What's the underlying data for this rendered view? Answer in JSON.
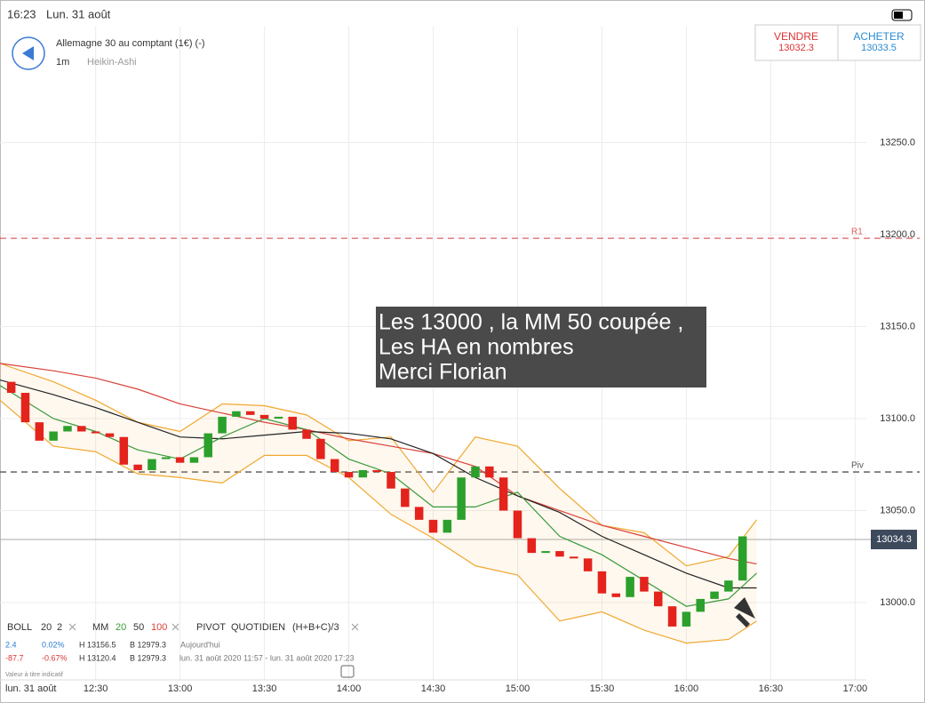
{
  "status": {
    "time": "16:23",
    "date": "Lun. 31 août"
  },
  "header": {
    "instrument": "Allemagne 30 au comptant (1€) (-)",
    "interval": "1m",
    "style": "Heikin-Ashi"
  },
  "quote": {
    "sell_label": "VENDRE",
    "sell_price": "13032.3",
    "buy_label": "ACHETER",
    "buy_price": "13033.5"
  },
  "annotation": {
    "lines": [
      "Les 13000 , la MM 50 coupée ,",
      "Les HA en nombres",
      "Merci Florian"
    ]
  },
  "legend": {
    "boll": "BOLL",
    "boll_period": "20",
    "boll_dev": "2",
    "mm": "MM",
    "mm_20": "20",
    "mm_50": "50",
    "mm_100": "100",
    "pivot": "PIVOT",
    "pivot_period": "QUOTIDIEN",
    "pivot_formula": "(H+B+C)/3",
    "row1": [
      "2.4",
      "0.02%",
      "H 13156.5",
      "B 12979.3",
      "Aujourd'hui"
    ],
    "row2": [
      "-87.7",
      "-0.67%",
      "H 13120.4",
      "B 12979.3",
      "lun. 31 août 2020 11:57 - lun. 31 août 2020 17:23"
    ],
    "note": "Valeur à titre indicatif",
    "day": "lun. 31 août"
  },
  "chart_data": {
    "type": "candlestick",
    "xlim": [
      716,
      1024
    ],
    "ylim": [
      12958,
      13313
    ],
    "xticks": [
      {
        "value": 750,
        "label": "12:30"
      },
      {
        "value": 780,
        "label": "13:00"
      },
      {
        "value": 810,
        "label": "13:30"
      },
      {
        "value": 840,
        "label": "14:00"
      },
      {
        "value": 870,
        "label": "14:30"
      },
      {
        "value": 900,
        "label": "15:00"
      },
      {
        "value": 930,
        "label": "15:30"
      },
      {
        "value": 960,
        "label": "16:00"
      },
      {
        "value": 990,
        "label": "16:30"
      },
      {
        "value": 1020,
        "label": "17:00"
      }
    ],
    "yticks": [
      {
        "value": 13000,
        "label": "13000.0"
      },
      {
        "value": 13050,
        "label": "13050.0"
      },
      {
        "value": 13100,
        "label": "13100.0"
      },
      {
        "value": 13150,
        "label": "13150.0"
      },
      {
        "value": 13200,
        "label": "13200.0"
      },
      {
        "value": 13250,
        "label": "13250.0"
      }
    ],
    "grid": true,
    "up_color": "#2ca02c",
    "down_color": "#e3231c",
    "candles": {
      "x": [
        720,
        725,
        730,
        735,
        740,
        745,
        750,
        755,
        760,
        765,
        770,
        775,
        780,
        785,
        790,
        795,
        800,
        805,
        810,
        815,
        820,
        825,
        830,
        835,
        840,
        845,
        850,
        855,
        860,
        865,
        870,
        875,
        880,
        885,
        890,
        895,
        900,
        905,
        910,
        915,
        920,
        925,
        930,
        935,
        940,
        945,
        950,
        955,
        960,
        965,
        970,
        975,
        980
      ],
      "open": [
        13120,
        13114,
        13098,
        13088,
        13093,
        13096,
        13093,
        13092,
        13090,
        13075,
        13072,
        13078,
        13079,
        13076,
        13079,
        13092,
        13101,
        13104,
        13102,
        13100,
        13101,
        13094,
        13089,
        13078,
        13071,
        13068,
        13072,
        13071,
        13062,
        13052,
        13045,
        13038,
        13045,
        13068,
        13074,
        13068,
        13050,
        13035,
        13027,
        13028,
        13025,
        13024,
        13017,
        13005,
        13003,
        13014,
        13006,
        12998,
        12987,
        12995,
        13002,
        13006,
        13012
      ],
      "close": [
        13114,
        13098,
        13088,
        13093,
        13096,
        13093,
        13092,
        13090,
        13075,
        13072,
        13078,
        13079,
        13076,
        13079,
        13092,
        13101,
        13104,
        13102,
        13100,
        13101,
        13094,
        13089,
        13078,
        13071,
        13068,
        13072,
        13071,
        13062,
        13052,
        13045,
        13038,
        13045,
        13068,
        13074,
        13068,
        13050,
        13035,
        13027,
        13028,
        13025,
        13024,
        13017,
        13005,
        13003,
        13014,
        13006,
        12998,
        12987,
        12995,
        13002,
        13006,
        13012,
        13036
      ]
    },
    "line_x": [
      716,
      735,
      750,
      765,
      780,
      795,
      810,
      825,
      840,
      855,
      870,
      885,
      900,
      915,
      930,
      945,
      960,
      975,
      985
    ],
    "lines": [
      {
        "color": "#f0a830",
        "values": [
          13130,
          13120,
          13110,
          13098,
          13093,
          13108,
          13107,
          13102,
          13088,
          13090,
          13060,
          13090,
          13085,
          13062,
          13042,
          13038,
          13020,
          13025,
          13045
        ]
      },
      {
        "color": "#f0a830",
        "values": [
          13110,
          13085,
          13082,
          13070,
          13068,
          13065,
          13080,
          13080,
          13068,
          13048,
          13035,
          13020,
          13015,
          12990,
          12995,
          12985,
          12978,
          12980,
          12990
        ]
      },
      {
        "color": "#d9413a",
        "values": [
          13130,
          13126,
          13122,
          13116,
          13108,
          13103,
          13098,
          13094,
          13089,
          13085,
          13081,
          13074,
          13058,
          13050,
          13042,
          13036,
          13030,
          13024,
          13021
        ]
      },
      {
        "color": "#222222",
        "values": [
          13121,
          13113,
          13106,
          13098,
          13090,
          13089,
          13091,
          13093,
          13092,
          13089,
          13081,
          13068,
          13058,
          13049,
          13036,
          13026,
          13016,
          13008,
          13008
        ]
      },
      {
        "color": "#3a9a3a",
        "values": [
          13118,
          13100,
          13093,
          13083,
          13078,
          13090,
          13100,
          13094,
          13078,
          13070,
          13052,
          13052,
          13060,
          13036,
          13026,
          13012,
          12998,
          13002,
          13016
        ]
      }
    ],
    "levels": [
      {
        "label": "R1",
        "value": 13198,
        "color": "#e06060"
      },
      {
        "label": "Piv",
        "value": 13071,
        "color": "#555555"
      }
    ],
    "last": 13034.3
  }
}
